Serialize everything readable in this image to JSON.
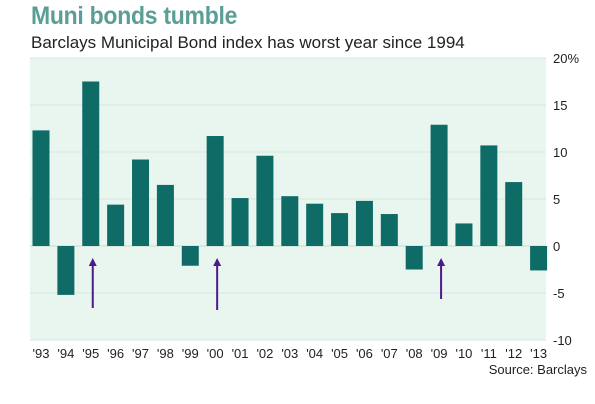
{
  "header": {
    "title": "Muni bonds tumble",
    "subtitle": "Barclays Municipal Bond index has worst year since 1994",
    "source": "Source: Barclays"
  },
  "colors": {
    "bar": "#0e6b65",
    "plot_bg": "#e8f6ef",
    "arrow": "#4b1b8a",
    "title": "#5a9e96"
  },
  "chart_data": {
    "type": "bar",
    "title": "Muni bonds tumble",
    "subtitle": "Barclays Municipal Bond index has worst year since 1994",
    "categories": [
      "'93",
      "'94",
      "'95",
      "'96",
      "'97",
      "'98",
      "'99",
      "'00",
      "'01",
      "'02",
      "'03",
      "'04",
      "'05",
      "'06",
      "'07",
      "'08",
      "'09",
      "'10",
      "'11",
      "'12",
      "'13"
    ],
    "values": [
      12.3,
      -5.2,
      17.5,
      4.4,
      9.2,
      6.5,
      -2.1,
      11.7,
      5.1,
      9.6,
      5.3,
      4.5,
      3.5,
      4.8,
      3.4,
      -2.5,
      12.9,
      2.4,
      10.7,
      6.8,
      -2.6
    ],
    "ylim": [
      -10,
      20
    ],
    "yticks": [
      -10,
      -5,
      0,
      5,
      10,
      15,
      20
    ],
    "ytick_labels": [
      "-10",
      "-5",
      "0",
      "5",
      "10",
      "15",
      "20%"
    ],
    "y_axis_position": "right",
    "grid": true,
    "arrows_at": [
      "'95",
      "'00",
      "'09"
    ]
  }
}
